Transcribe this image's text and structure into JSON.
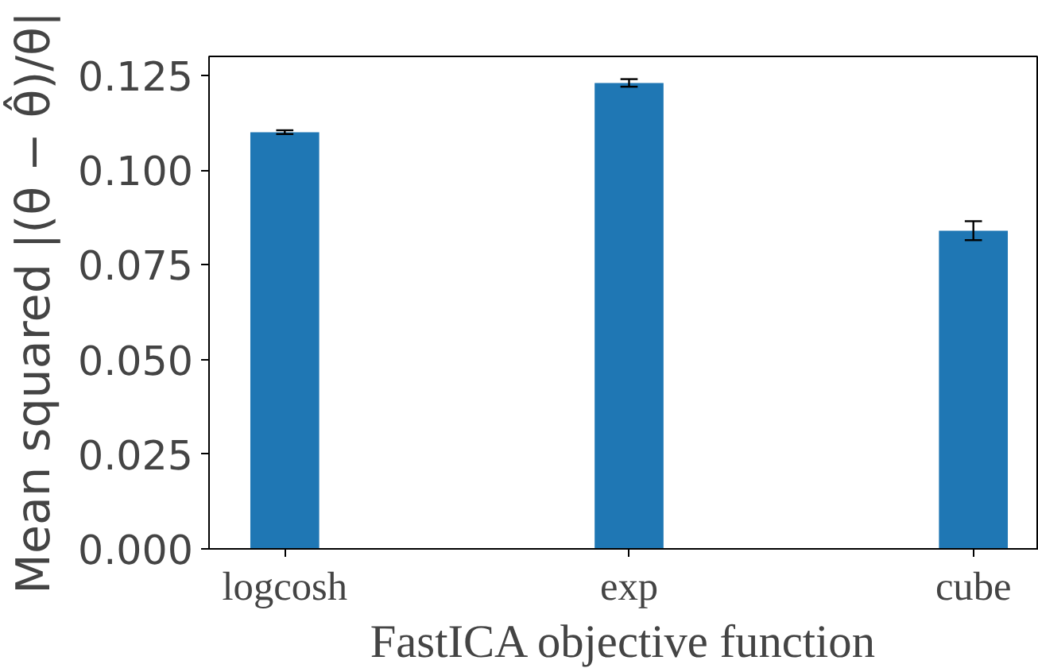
{
  "chart_data": {
    "type": "bar",
    "xlabel": "FastICA objective function",
    "ylabel": "Mean squared |(θ − θ̂)/θ|",
    "categories": [
      "logcosh",
      "exp",
      "cube"
    ],
    "values": [
      0.11,
      0.123,
      0.084
    ],
    "errors": [
      0.0005,
      0.001,
      0.0025
    ],
    "color": "#1f77b4",
    "ylim": [
      0,
      0.13
    ],
    "yticks": [
      {
        "value": 0,
        "label": "0.000"
      },
      {
        "value": 0.025,
        "label": "0.025"
      },
      {
        "value": 0.05,
        "label": "0.050"
      },
      {
        "value": 0.075,
        "label": "0.075"
      },
      {
        "value": 0.1,
        "label": "0.100"
      },
      {
        "value": 0.125,
        "label": "0.125"
      }
    ],
    "grid": false
  }
}
